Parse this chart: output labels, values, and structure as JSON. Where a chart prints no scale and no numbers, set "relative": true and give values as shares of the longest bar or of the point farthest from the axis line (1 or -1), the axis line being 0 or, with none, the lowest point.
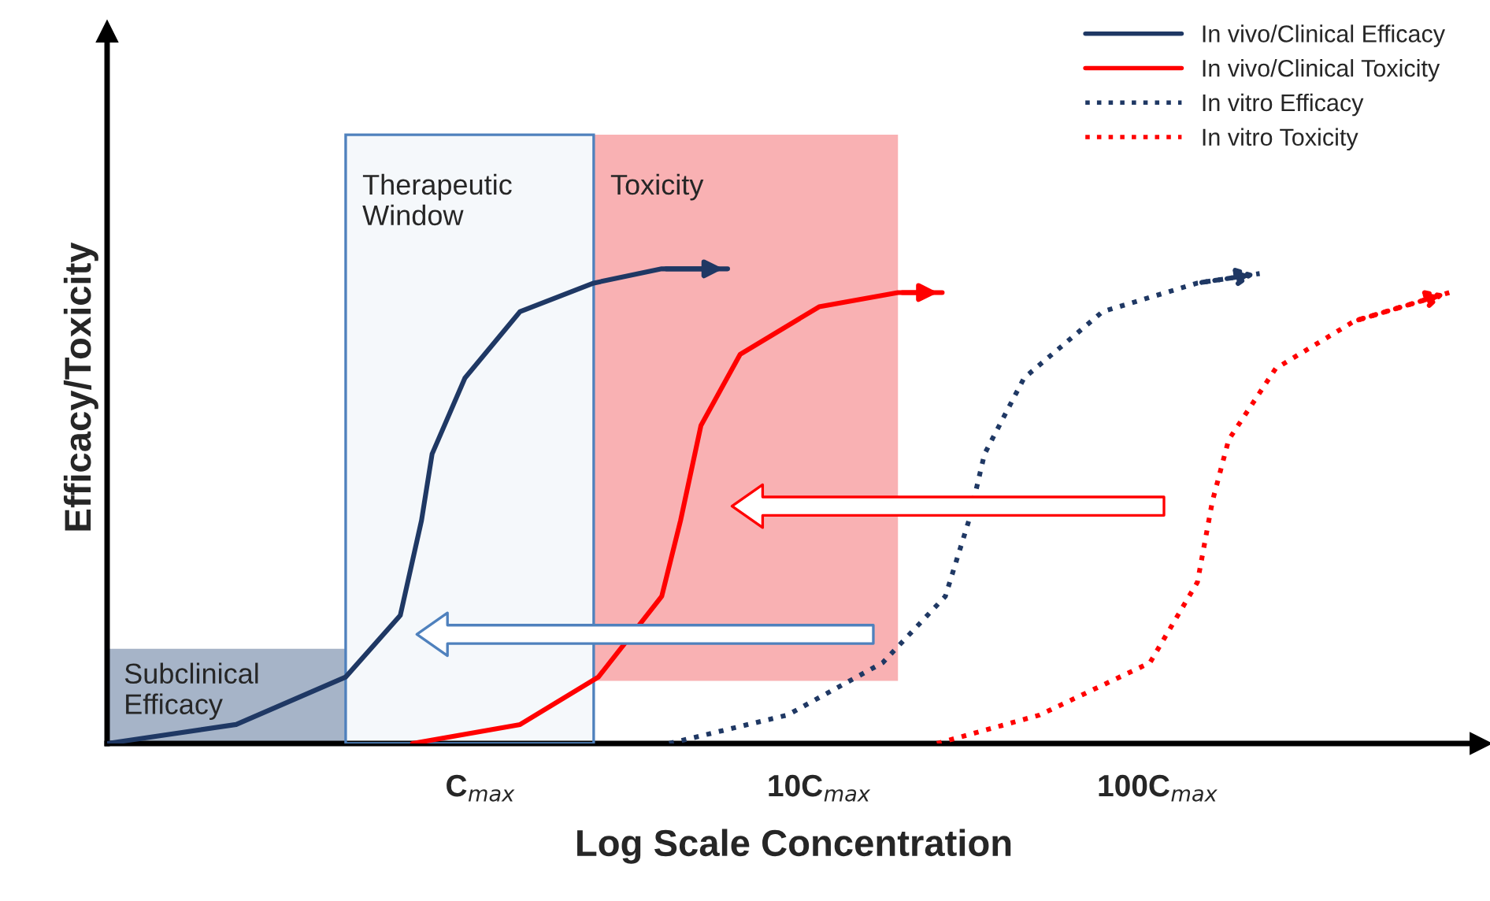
{
  "chart_data": {
    "type": "line",
    "relative": true,
    "log": "x",
    "xlabel": "Log Scale Concentration",
    "ylabel": "Efficacy/Toxicity",
    "xlim": [
      0.079,
      898
    ],
    "xticks": [
      {
        "value": 1,
        "label": "C$_{max}$"
      },
      {
        "value": 10,
        "label": "10C$_{max}$"
      },
      {
        "value": 100,
        "label": "100C$_{max}$"
      }
    ],
    "series": [
      {
        "name": "In vivo/Clinical Efficacy",
        "color": "#1f3864",
        "line_style": "solid",
        "x": [
          0.079,
          0.19,
          0.4,
          0.58,
          0.67,
          0.72,
          0.9,
          1.31,
          2.16,
          3.43,
          5.37
        ],
        "values": [
          0,
          0.04,
          0.14,
          0.27,
          0.47,
          0.61,
          0.77,
          0.91,
          0.97,
          1.0,
          1.0
        ]
      },
      {
        "name": "In vivo/Clinical Toxicity",
        "color": "#ff0000",
        "line_style": "solid",
        "x": [
          0.63,
          1.31,
          2.23,
          3.43,
          3.9,
          4.48,
          5.85,
          10,
          17.1,
          23.1
        ],
        "values": [
          0,
          0.04,
          0.14,
          0.31,
          0.47,
          0.67,
          0.82,
          0.92,
          0.95,
          0.95
        ]
      },
      {
        "name": "In vitro Efficacy",
        "color": "#1f3864",
        "line_style": "dotted",
        "x": [
          3.61,
          8.07,
          15.4,
          23.6,
          27.7,
          30.8,
          40.3,
          68.8,
          131,
          200
        ],
        "values": [
          0,
          0.06,
          0.17,
          0.31,
          0.47,
          0.61,
          0.77,
          0.91,
          0.97,
          0.99
        ]
      },
      {
        "name": "In vitro Toxicity",
        "color": "#ff0000",
        "line_style": "dotted",
        "x": [
          22.3,
          44.8,
          94.8,
          131,
          145,
          162,
          223,
          381,
          726
        ],
        "values": [
          0,
          0.06,
          0.17,
          0.34,
          0.51,
          0.64,
          0.79,
          0.89,
          0.95
        ]
      }
    ],
    "bands": [
      {
        "axis": "x",
        "from": 0.079,
        "to": 0.4,
        "label": "Subclinical\nEfficacy",
        "color": "#a6b4c8"
      },
      {
        "axis": "x",
        "from": 0.4,
        "to": 2.16,
        "label": "Therapeutic\nWindow",
        "color": "#4f81bd"
      },
      {
        "axis": "x",
        "from": 2.16,
        "to": 17.1,
        "label": "Toxicity",
        "color": "#f8a9ab"
      }
    ],
    "legend": "top right",
    "grid": false,
    "marker": "none"
  }
}
